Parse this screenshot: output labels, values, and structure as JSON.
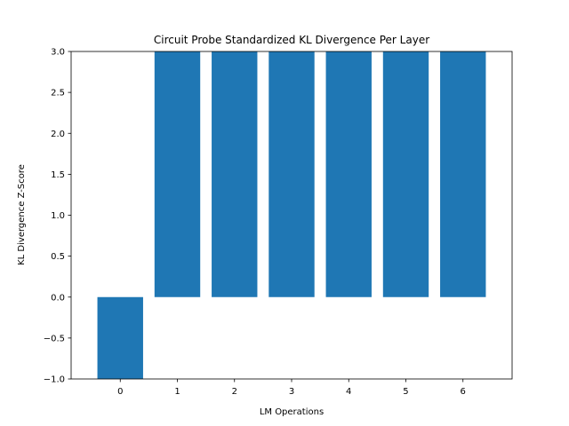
{
  "chart_data": {
    "type": "bar",
    "title": "Circuit Probe Standardized KL Divergence Per Layer",
    "xlabel": "LM Operations",
    "ylabel": "KL Divergence Z-Score",
    "categories": [
      "0",
      "1",
      "2",
      "3",
      "4",
      "5",
      "6"
    ],
    "values": [
      -1.0,
      3.0,
      3.0,
      3.0,
      3.0,
      3.0,
      3.0
    ],
    "ylim": [
      -1.0,
      3.0
    ],
    "yticks": [
      "−1.0",
      "−0.5",
      "0.0",
      "0.5",
      "1.0",
      "1.5",
      "2.0",
      "2.5",
      "3.0"
    ],
    "ytick_values": [
      -1.0,
      -0.5,
      0.0,
      0.5,
      1.0,
      1.5,
      2.0,
      2.5,
      3.0
    ],
    "grid": false,
    "legend": "none",
    "bar_color": "#1f77b4"
  }
}
